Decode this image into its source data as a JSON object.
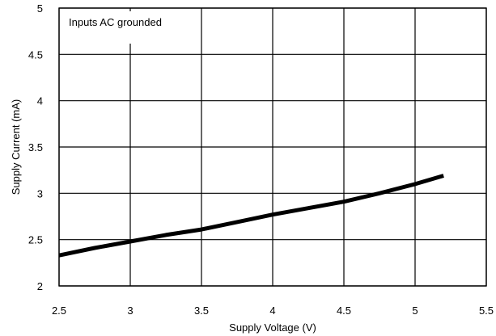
{
  "chart_data": {
    "type": "line",
    "xlabel": "Supply Voltage (V)",
    "ylabel": "Supply Current (mA)",
    "xlim": [
      2.5,
      5.5
    ],
    "ylim": [
      2,
      5
    ],
    "x_ticks": [
      "2.5",
      "3",
      "3.5",
      "4",
      "4.5",
      "5",
      "5.5"
    ],
    "y_ticks": [
      "2",
      "2.5",
      "3",
      "3.5",
      "4",
      "4.5",
      "5"
    ],
    "grid": true,
    "annotation": "Inputs AC grounded",
    "series": [
      {
        "color": "#000000",
        "x": [
          2.5,
          2.75,
          3.0,
          3.25,
          3.5,
          3.75,
          4.0,
          4.25,
          4.5,
          4.75,
          5.0,
          5.2
        ],
        "y": [
          2.33,
          2.41,
          2.48,
          2.55,
          2.61,
          2.69,
          2.77,
          2.84,
          2.91,
          3.0,
          3.1,
          3.19
        ]
      }
    ]
  }
}
